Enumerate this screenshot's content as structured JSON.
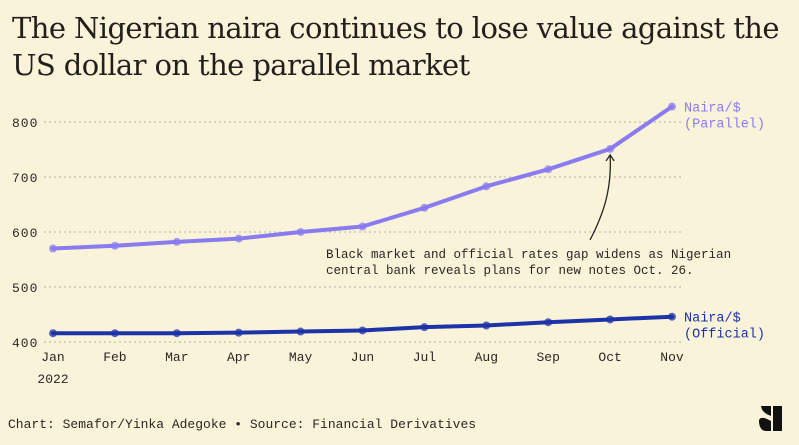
{
  "title": "The Nigerian naira continues to lose value against the US dollar on the parallel market",
  "footer": "Chart: Semafor/Yinka Adegoke • Source: Financial Derivatives",
  "logo": "semafor-logo",
  "colors": {
    "background": "#f9f3da",
    "parallel": "#8a7cf0",
    "official": "#1d33a8",
    "grid": "#b8b29c",
    "text": "#2b2723"
  },
  "chart_data": {
    "type": "line",
    "title": "The Nigerian naira continues to lose value against the US dollar on the parallel market",
    "xlabel": "",
    "ylabel": "",
    "categories": [
      "Jan",
      "Feb",
      "Mar",
      "Apr",
      "May",
      "Jun",
      "Jul",
      "Aug",
      "Sep",
      "Oct",
      "Nov"
    ],
    "x_sublabel": "2022",
    "ylim": [
      400,
      840
    ],
    "yticks": [
      400,
      500,
      600,
      700,
      800
    ],
    "grid": true,
    "legend": "inline-right",
    "series": [
      {
        "name": "Naira/$ (Parallel)",
        "label_lines": [
          "Naira/$",
          "(Parallel)"
        ],
        "values": [
          570,
          575,
          582,
          588,
          600,
          610,
          644,
          683,
          714,
          751,
          828
        ]
      },
      {
        "name": "Naira/$ (Official)",
        "label_lines": [
          "Naira/$",
          "(Official)"
        ],
        "values": [
          416,
          416,
          416,
          417,
          419,
          421,
          427,
          430,
          436,
          441,
          446
        ]
      }
    ],
    "annotation": {
      "lines": [
        "Black market and official rates gap widens as Nigerian",
        "central bank reveals plans for new notes Oct. 26."
      ],
      "points_to": {
        "series": "Naira/$ (Parallel)",
        "x": "Oct"
      }
    }
  }
}
